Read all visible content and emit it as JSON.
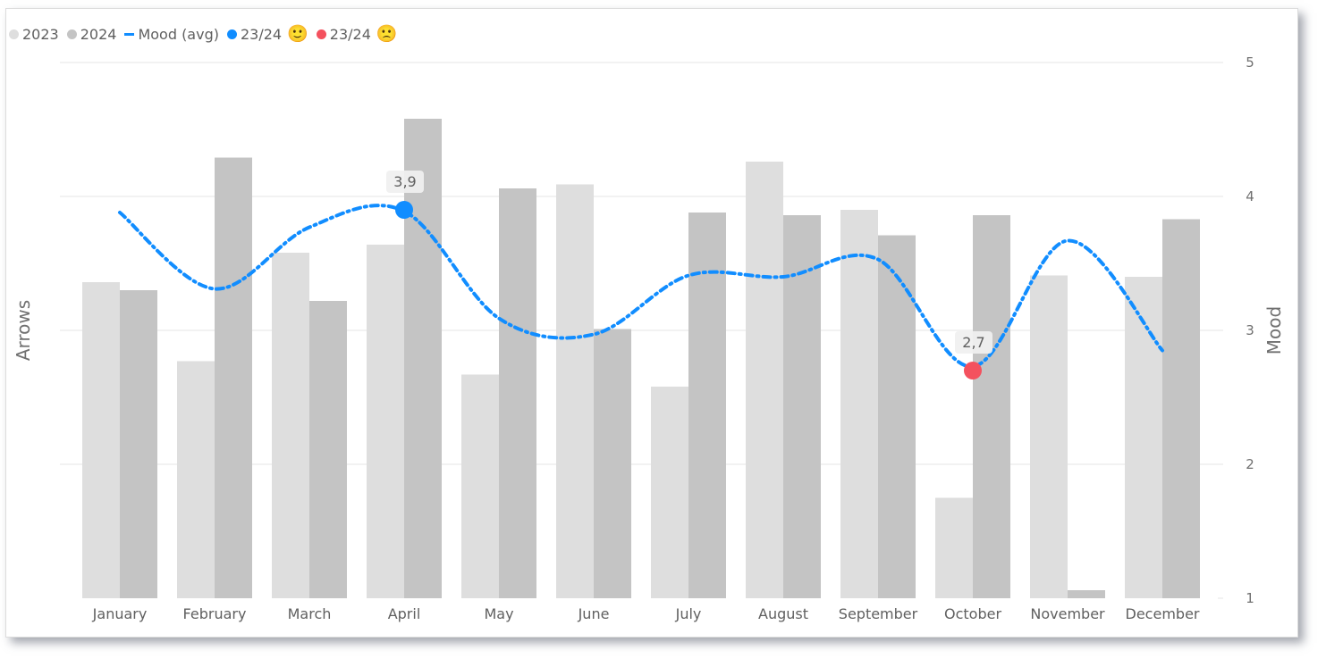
{
  "legend": {
    "items": [
      {
        "key": "2023",
        "label": "2023",
        "type": "dot",
        "color": "#dedede"
      },
      {
        "key": "2024",
        "label": "2024",
        "type": "dot",
        "color": "#c4c4c4"
      },
      {
        "key": "mood",
        "label": "Mood (avg)",
        "type": "dash",
        "color": "#118dff"
      },
      {
        "key": "best",
        "label": "23/24",
        "type": "dot",
        "color": "#118dff",
        "emoji": "🙂",
        "emoji_name": "smiling-face-icon"
      },
      {
        "key": "worst",
        "label": "23/24",
        "type": "dot",
        "color": "#f4515e",
        "emoji": "🙁",
        "emoji_name": "frowning-face-icon"
      }
    ]
  },
  "axes": {
    "left_title": "Arrows",
    "right_title": "Mood",
    "right_ticks": [
      "1",
      "2",
      "3",
      "4",
      "5"
    ]
  },
  "colors": {
    "bar_2023": "#dedede",
    "bar_2024": "#c4c4c4",
    "mood_line": "#118dff",
    "best_point": "#118dff",
    "worst_point": "#f4515e",
    "label_bg": "#f0f0f0",
    "grid": "#ebebeb"
  },
  "chart_data": {
    "type": "bar",
    "title": "",
    "xlabel": "",
    "ylabel": "Arrows",
    "y2label": "Mood",
    "ylim": [
      1,
      5
    ],
    "grid": true,
    "legend_position": "top-left",
    "categories": [
      "January",
      "February",
      "March",
      "April",
      "May",
      "June",
      "July",
      "August",
      "September",
      "October",
      "November",
      "December"
    ],
    "series": [
      {
        "name": "2023",
        "type": "bar",
        "values": [
          3.36,
          2.77,
          3.58,
          3.64,
          2.67,
          4.09,
          2.58,
          4.26,
          3.9,
          1.75,
          3.41,
          3.4
        ]
      },
      {
        "name": "2024",
        "type": "bar",
        "values": [
          3.3,
          4.29,
          3.22,
          4.58,
          4.06,
          3.01,
          3.88,
          3.86,
          3.71,
          3.86,
          1.06,
          3.83
        ]
      },
      {
        "name": "Mood (avg)",
        "type": "line",
        "axis": "right",
        "values": [
          3.88,
          3.31,
          3.77,
          3.89,
          3.09,
          2.97,
          3.41,
          3.4,
          3.53,
          2.73,
          3.67,
          2.85
        ]
      }
    ],
    "annotations": [
      {
        "series": "23/24 best",
        "category": "April",
        "value": 3.9,
        "label": "3,9",
        "color": "#118dff"
      },
      {
        "series": "23/24 worst",
        "category": "October",
        "value": 2.7,
        "label": "2,7",
        "color": "#f4515e"
      }
    ]
  }
}
